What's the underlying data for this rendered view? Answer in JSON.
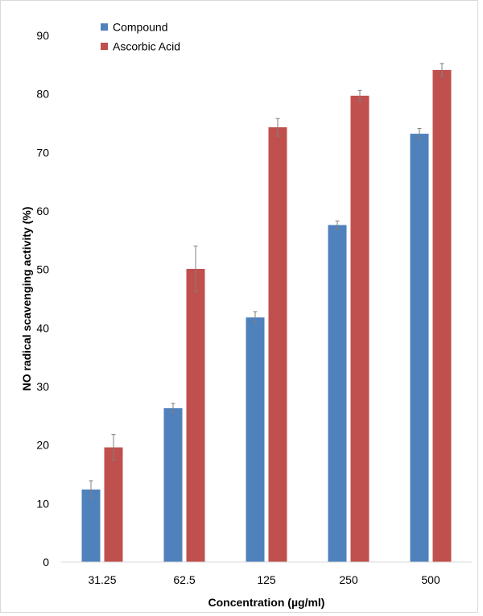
{
  "chart_data": {
    "type": "bar",
    "categories": [
      "31.25",
      "62.5",
      "125",
      "250",
      "500"
    ],
    "series": [
      {
        "name": "Compound",
        "color": "#4F81BD",
        "values": [
          12.4,
          26.3,
          41.8,
          57.6,
          73.2
        ],
        "errors": [
          1.5,
          0.8,
          1.0,
          0.7,
          0.9
        ]
      },
      {
        "name": "Ascorbic Acid",
        "color": "#C0504D",
        "values": [
          19.6,
          50.1,
          74.3,
          79.7,
          84.1
        ],
        "errors": [
          2.2,
          3.9,
          1.5,
          0.9,
          1.1
        ]
      }
    ],
    "xlabel": "Concentration (µg/ml)",
    "ylabel": "NO radical scavenging activity (%)",
    "ylim": [
      0,
      90
    ],
    "yticks": [
      "0",
      "10",
      "20",
      "30",
      "40",
      "50",
      "60",
      "70",
      "80",
      "90"
    ],
    "grid": false,
    "legend_position": "top-left"
  }
}
